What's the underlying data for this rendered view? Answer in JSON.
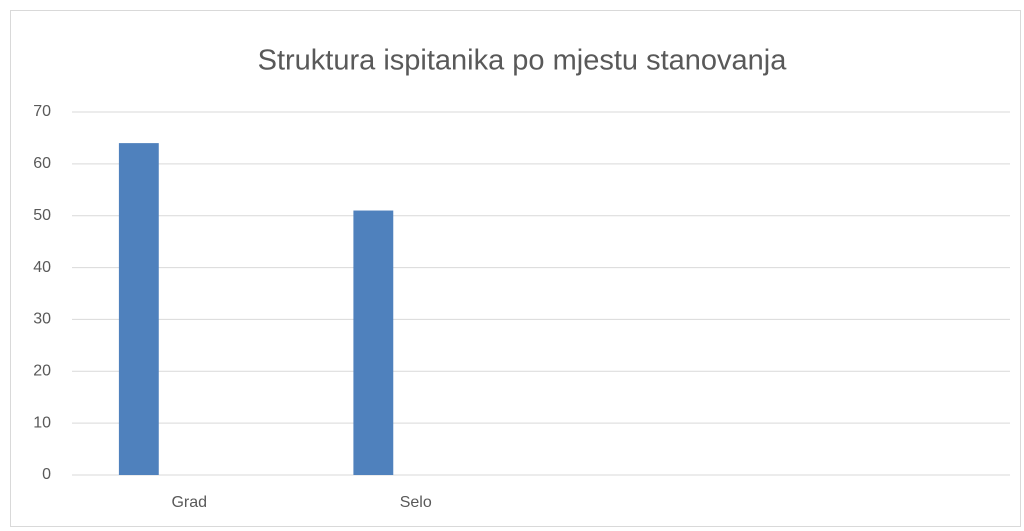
{
  "chart_data": {
    "type": "bar",
    "title": "Struktura ispitanika po mjestu stanovanja",
    "categories": [
      "Grad",
      "Selo",
      null,
      null
    ],
    "values": [
      64,
      51,
      null,
      null
    ],
    "color": "#4f81bd",
    "ylim": [
      0,
      70
    ],
    "yticks": [
      0,
      10,
      20,
      30,
      40,
      50,
      60,
      70
    ],
    "grid": true
  }
}
